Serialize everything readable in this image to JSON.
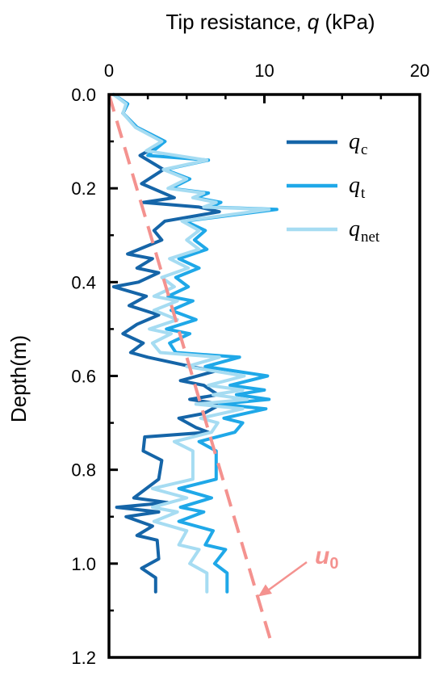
{
  "chart_data": {
    "type": "line",
    "title": "Tip resistance, q (kPa)",
    "title_parts": {
      "before": "Tip resistance, ",
      "var": "q",
      "after": " (kPa)"
    },
    "xlabel_position": "top",
    "ylabel": "Depth(m)",
    "xlim": [
      0,
      20
    ],
    "ylim": [
      0,
      1.2
    ],
    "y_inverted": true,
    "x_ticks": [
      "0",
      "10",
      "20"
    ],
    "y_ticks": [
      "0.0",
      "0.2",
      "0.4",
      "0.6",
      "0.8",
      "1.0",
      "1.2"
    ],
    "grid": false,
    "legend_position": "top-right",
    "series": [
      {
        "name": "qc",
        "name_main": "q",
        "name_sub": "c",
        "color": "#1565a8",
        "points": [
          [
            0.3,
            0.0
          ],
          [
            1.2,
            0.02
          ],
          [
            0.9,
            0.04
          ],
          [
            1.8,
            0.07
          ],
          [
            3.6,
            0.1
          ],
          [
            2.0,
            0.13
          ],
          [
            3.5,
            0.16
          ],
          [
            2.1,
            0.19
          ],
          [
            4.2,
            0.22
          ],
          [
            2.2,
            0.23
          ],
          [
            5.8,
            0.24
          ],
          [
            7.1,
            0.25
          ],
          [
            3.6,
            0.27
          ],
          [
            2.9,
            0.29
          ],
          [
            3.4,
            0.31
          ],
          [
            1.2,
            0.34
          ],
          [
            2.8,
            0.35
          ],
          [
            1.8,
            0.37
          ],
          [
            3.2,
            0.38
          ],
          [
            1.9,
            0.4
          ],
          [
            0.3,
            0.41
          ],
          [
            2.4,
            0.43
          ],
          [
            1.3,
            0.45
          ],
          [
            3.2,
            0.47
          ],
          [
            1.8,
            0.49
          ],
          [
            0.9,
            0.51
          ],
          [
            2.2,
            0.53
          ],
          [
            1.4,
            0.55
          ],
          [
            2.5,
            0.56
          ],
          [
            5.3,
            0.58
          ],
          [
            6.8,
            0.59
          ],
          [
            4.6,
            0.61
          ],
          [
            6.1,
            0.62
          ],
          [
            7.0,
            0.64
          ],
          [
            5.2,
            0.65
          ],
          [
            7.2,
            0.66
          ],
          [
            6.1,
            0.68
          ],
          [
            4.5,
            0.69
          ],
          [
            5.6,
            0.71
          ],
          [
            6.4,
            0.72
          ],
          [
            2.3,
            0.73
          ],
          [
            2.2,
            0.76
          ],
          [
            3.4,
            0.78
          ],
          [
            3.2,
            0.82
          ],
          [
            1.6,
            0.86
          ],
          [
            3.8,
            0.87
          ],
          [
            0.5,
            0.88
          ],
          [
            3.2,
            0.89
          ],
          [
            1.1,
            0.9
          ],
          [
            2.8,
            0.92
          ],
          [
            1.8,
            0.94
          ],
          [
            3.1,
            0.95
          ],
          [
            3.2,
            0.99
          ],
          [
            2.1,
            1.01
          ],
          [
            3.0,
            1.03
          ],
          [
            3.0,
            1.06
          ]
        ]
      },
      {
        "name": "qt",
        "name_main": "q",
        "name_sub": "t",
        "color": "#1fa8e8",
        "points": [
          [
            0.3,
            0.0
          ],
          [
            1.2,
            0.02
          ],
          [
            0.9,
            0.04
          ],
          [
            1.8,
            0.07
          ],
          [
            3.6,
            0.1
          ],
          [
            2.5,
            0.13
          ],
          [
            6.4,
            0.14
          ],
          [
            3.6,
            0.16
          ],
          [
            5.2,
            0.18
          ],
          [
            4.0,
            0.2
          ],
          [
            6.4,
            0.21
          ],
          [
            5.6,
            0.22
          ],
          [
            7.2,
            0.23
          ],
          [
            6.5,
            0.24
          ],
          [
            10.8,
            0.245
          ],
          [
            4.9,
            0.27
          ],
          [
            6.2,
            0.29
          ],
          [
            5.5,
            0.31
          ],
          [
            6.3,
            0.33
          ],
          [
            4.5,
            0.35
          ],
          [
            5.8,
            0.37
          ],
          [
            4.3,
            0.39
          ],
          [
            5.1,
            0.41
          ],
          [
            3.8,
            0.43
          ],
          [
            5.4,
            0.44
          ],
          [
            4.0,
            0.46
          ],
          [
            5.6,
            0.48
          ],
          [
            3.7,
            0.5
          ],
          [
            5.2,
            0.51
          ],
          [
            3.9,
            0.53
          ],
          [
            4.3,
            0.55
          ],
          [
            8.4,
            0.56
          ],
          [
            6.2,
            0.58
          ],
          [
            10.2,
            0.6
          ],
          [
            7.8,
            0.62
          ],
          [
            10.0,
            0.63
          ],
          [
            8.2,
            0.64
          ],
          [
            10.3,
            0.65
          ],
          [
            7.1,
            0.66
          ],
          [
            10.1,
            0.67
          ],
          [
            7.4,
            0.69
          ],
          [
            8.6,
            0.7
          ],
          [
            8.1,
            0.72
          ],
          [
            5.8,
            0.74
          ],
          [
            6.9,
            0.76
          ],
          [
            6.9,
            0.82
          ],
          [
            4.5,
            0.84
          ],
          [
            6.6,
            0.86
          ],
          [
            4.6,
            0.88
          ],
          [
            6.1,
            0.89
          ],
          [
            4.5,
            0.91
          ],
          [
            6.7,
            0.93
          ],
          [
            6.2,
            0.96
          ],
          [
            7.5,
            0.97
          ],
          [
            6.8,
            1.0
          ],
          [
            7.6,
            1.02
          ],
          [
            7.6,
            1.06
          ]
        ]
      },
      {
        "name": "qnet",
        "name_main": "q",
        "name_sub": "net",
        "color": "#a6dcf2",
        "points": [
          [
            0.3,
            0.0
          ],
          [
            1.1,
            0.02
          ],
          [
            0.9,
            0.04
          ],
          [
            1.7,
            0.07
          ],
          [
            3.4,
            0.1
          ],
          [
            2.4,
            0.12
          ],
          [
            6.3,
            0.14
          ],
          [
            3.5,
            0.16
          ],
          [
            5.0,
            0.18
          ],
          [
            3.8,
            0.2
          ],
          [
            6.1,
            0.21
          ],
          [
            5.4,
            0.22
          ],
          [
            6.9,
            0.23
          ],
          [
            6.1,
            0.24
          ],
          [
            10.3,
            0.245
          ],
          [
            4.7,
            0.27
          ],
          [
            5.8,
            0.29
          ],
          [
            5.0,
            0.31
          ],
          [
            5.8,
            0.33
          ],
          [
            3.9,
            0.35
          ],
          [
            5.1,
            0.37
          ],
          [
            3.4,
            0.39
          ],
          [
            4.2,
            0.41
          ],
          [
            2.9,
            0.43
          ],
          [
            4.4,
            0.44
          ],
          [
            2.9,
            0.46
          ],
          [
            4.4,
            0.48
          ],
          [
            2.6,
            0.5
          ],
          [
            4.0,
            0.51
          ],
          [
            2.8,
            0.53
          ],
          [
            3.3,
            0.55
          ],
          [
            7.1,
            0.56
          ],
          [
            5.0,
            0.58
          ],
          [
            8.7,
            0.6
          ],
          [
            6.4,
            0.62
          ],
          [
            8.6,
            0.63
          ],
          [
            6.7,
            0.64
          ],
          [
            8.9,
            0.65
          ],
          [
            5.6,
            0.66
          ],
          [
            8.6,
            0.67
          ],
          [
            5.9,
            0.69
          ],
          [
            7.0,
            0.7
          ],
          [
            6.6,
            0.72
          ],
          [
            4.2,
            0.74
          ],
          [
            5.4,
            0.76
          ],
          [
            5.4,
            0.82
          ],
          [
            2.8,
            0.84
          ],
          [
            5.0,
            0.86
          ],
          [
            2.8,
            0.88
          ],
          [
            4.4,
            0.89
          ],
          [
            2.9,
            0.91
          ],
          [
            5.0,
            0.93
          ],
          [
            4.5,
            0.96
          ],
          [
            5.8,
            0.97
          ],
          [
            5.2,
            1.0
          ],
          [
            6.3,
            1.02
          ],
          [
            6.3,
            1.06
          ]
        ]
      }
    ],
    "reference_line": {
      "name": "u0",
      "name_main": "u",
      "name_sub": "0",
      "color": "#f4928f",
      "style": "dashed",
      "points": [
        [
          0,
          0
        ],
        [
          10.5,
          1.175
        ]
      ]
    },
    "annotation": {
      "text_main": "u",
      "text_sub": "0",
      "color": "#f4928f",
      "arrow_target": [
        9.5,
        1.07
      ]
    }
  }
}
